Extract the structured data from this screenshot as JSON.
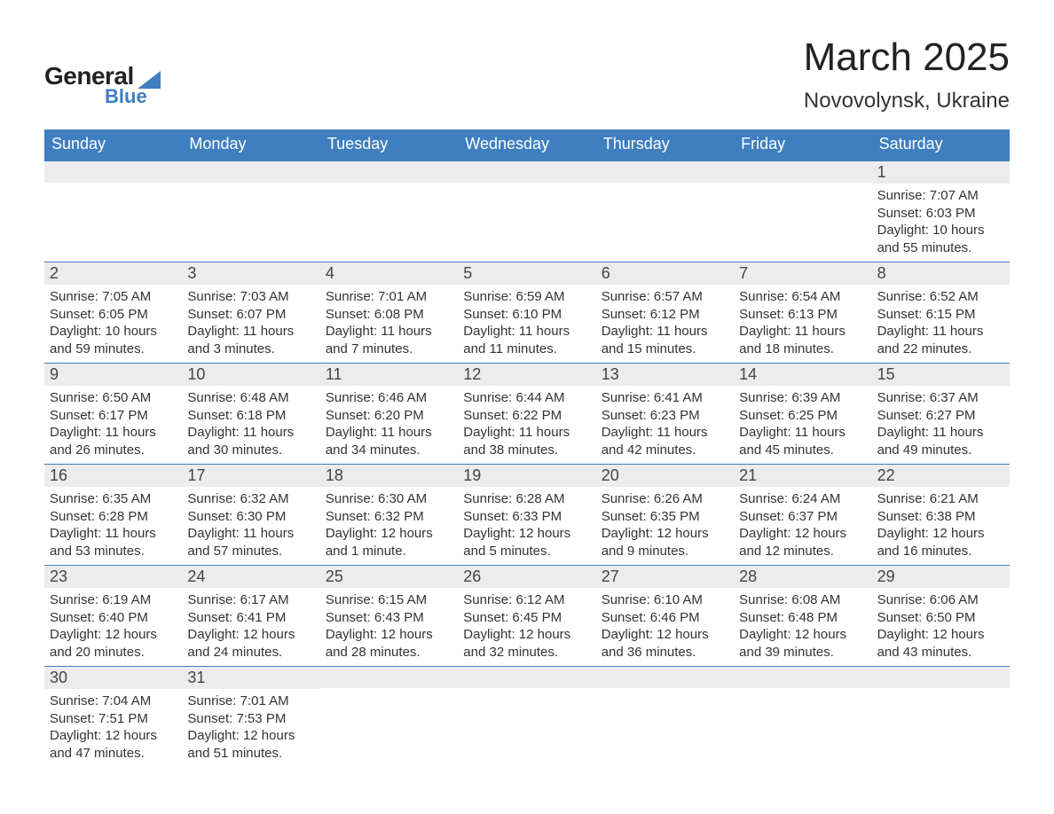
{
  "logo": {
    "text_general": "General",
    "text_blue": "Blue"
  },
  "title": "March 2025",
  "subtitle": "Novovolynsk, Ukraine",
  "colors": {
    "header_bg": "#3f7fbf",
    "header_fg": "#ffffff",
    "daynum_bg": "#ececec",
    "text": "#333333",
    "rule": "#3f7fbf"
  },
  "day_headers": [
    "Sunday",
    "Monday",
    "Tuesday",
    "Wednesday",
    "Thursday",
    "Friday",
    "Saturday"
  ],
  "weeks": [
    [
      {
        "n": "",
        "lines": []
      },
      {
        "n": "",
        "lines": []
      },
      {
        "n": "",
        "lines": []
      },
      {
        "n": "",
        "lines": []
      },
      {
        "n": "",
        "lines": []
      },
      {
        "n": "",
        "lines": []
      },
      {
        "n": "1",
        "lines": [
          "Sunrise: 7:07 AM",
          "Sunset: 6:03 PM",
          "Daylight: 10 hours and 55 minutes."
        ]
      }
    ],
    [
      {
        "n": "2",
        "lines": [
          "Sunrise: 7:05 AM",
          "Sunset: 6:05 PM",
          "Daylight: 10 hours and 59 minutes."
        ]
      },
      {
        "n": "3",
        "lines": [
          "Sunrise: 7:03 AM",
          "Sunset: 6:07 PM",
          "Daylight: 11 hours and 3 minutes."
        ]
      },
      {
        "n": "4",
        "lines": [
          "Sunrise: 7:01 AM",
          "Sunset: 6:08 PM",
          "Daylight: 11 hours and 7 minutes."
        ]
      },
      {
        "n": "5",
        "lines": [
          "Sunrise: 6:59 AM",
          "Sunset: 6:10 PM",
          "Daylight: 11 hours and 11 minutes."
        ]
      },
      {
        "n": "6",
        "lines": [
          "Sunrise: 6:57 AM",
          "Sunset: 6:12 PM",
          "Daylight: 11 hours and 15 minutes."
        ]
      },
      {
        "n": "7",
        "lines": [
          "Sunrise: 6:54 AM",
          "Sunset: 6:13 PM",
          "Daylight: 11 hours and 18 minutes."
        ]
      },
      {
        "n": "8",
        "lines": [
          "Sunrise: 6:52 AM",
          "Sunset: 6:15 PM",
          "Daylight: 11 hours and 22 minutes."
        ]
      }
    ],
    [
      {
        "n": "9",
        "lines": [
          "Sunrise: 6:50 AM",
          "Sunset: 6:17 PM",
          "Daylight: 11 hours and 26 minutes."
        ]
      },
      {
        "n": "10",
        "lines": [
          "Sunrise: 6:48 AM",
          "Sunset: 6:18 PM",
          "Daylight: 11 hours and 30 minutes."
        ]
      },
      {
        "n": "11",
        "lines": [
          "Sunrise: 6:46 AM",
          "Sunset: 6:20 PM",
          "Daylight: 11 hours and 34 minutes."
        ]
      },
      {
        "n": "12",
        "lines": [
          "Sunrise: 6:44 AM",
          "Sunset: 6:22 PM",
          "Daylight: 11 hours and 38 minutes."
        ]
      },
      {
        "n": "13",
        "lines": [
          "Sunrise: 6:41 AM",
          "Sunset: 6:23 PM",
          "Daylight: 11 hours and 42 minutes."
        ]
      },
      {
        "n": "14",
        "lines": [
          "Sunrise: 6:39 AM",
          "Sunset: 6:25 PM",
          "Daylight: 11 hours and 45 minutes."
        ]
      },
      {
        "n": "15",
        "lines": [
          "Sunrise: 6:37 AM",
          "Sunset: 6:27 PM",
          "Daylight: 11 hours and 49 minutes."
        ]
      }
    ],
    [
      {
        "n": "16",
        "lines": [
          "Sunrise: 6:35 AM",
          "Sunset: 6:28 PM",
          "Daylight: 11 hours and 53 minutes."
        ]
      },
      {
        "n": "17",
        "lines": [
          "Sunrise: 6:32 AM",
          "Sunset: 6:30 PM",
          "Daylight: 11 hours and 57 minutes."
        ]
      },
      {
        "n": "18",
        "lines": [
          "Sunrise: 6:30 AM",
          "Sunset: 6:32 PM",
          "Daylight: 12 hours and 1 minute."
        ]
      },
      {
        "n": "19",
        "lines": [
          "Sunrise: 6:28 AM",
          "Sunset: 6:33 PM",
          "Daylight: 12 hours and 5 minutes."
        ]
      },
      {
        "n": "20",
        "lines": [
          "Sunrise: 6:26 AM",
          "Sunset: 6:35 PM",
          "Daylight: 12 hours and 9 minutes."
        ]
      },
      {
        "n": "21",
        "lines": [
          "Sunrise: 6:24 AM",
          "Sunset: 6:37 PM",
          "Daylight: 12 hours and 12 minutes."
        ]
      },
      {
        "n": "22",
        "lines": [
          "Sunrise: 6:21 AM",
          "Sunset: 6:38 PM",
          "Daylight: 12 hours and 16 minutes."
        ]
      }
    ],
    [
      {
        "n": "23",
        "lines": [
          "Sunrise: 6:19 AM",
          "Sunset: 6:40 PM",
          "Daylight: 12 hours and 20 minutes."
        ]
      },
      {
        "n": "24",
        "lines": [
          "Sunrise: 6:17 AM",
          "Sunset: 6:41 PM",
          "Daylight: 12 hours and 24 minutes."
        ]
      },
      {
        "n": "25",
        "lines": [
          "Sunrise: 6:15 AM",
          "Sunset: 6:43 PM",
          "Daylight: 12 hours and 28 minutes."
        ]
      },
      {
        "n": "26",
        "lines": [
          "Sunrise: 6:12 AM",
          "Sunset: 6:45 PM",
          "Daylight: 12 hours and 32 minutes."
        ]
      },
      {
        "n": "27",
        "lines": [
          "Sunrise: 6:10 AM",
          "Sunset: 6:46 PM",
          "Daylight: 12 hours and 36 minutes."
        ]
      },
      {
        "n": "28",
        "lines": [
          "Sunrise: 6:08 AM",
          "Sunset: 6:48 PM",
          "Daylight: 12 hours and 39 minutes."
        ]
      },
      {
        "n": "29",
        "lines": [
          "Sunrise: 6:06 AM",
          "Sunset: 6:50 PM",
          "Daylight: 12 hours and 43 minutes."
        ]
      }
    ],
    [
      {
        "n": "30",
        "lines": [
          "Sunrise: 7:04 AM",
          "Sunset: 7:51 PM",
          "Daylight: 12 hours and 47 minutes."
        ]
      },
      {
        "n": "31",
        "lines": [
          "Sunrise: 7:01 AM",
          "Sunset: 7:53 PM",
          "Daylight: 12 hours and 51 minutes."
        ]
      },
      {
        "n": "",
        "lines": []
      },
      {
        "n": "",
        "lines": []
      },
      {
        "n": "",
        "lines": []
      },
      {
        "n": "",
        "lines": []
      },
      {
        "n": "",
        "lines": []
      }
    ]
  ]
}
